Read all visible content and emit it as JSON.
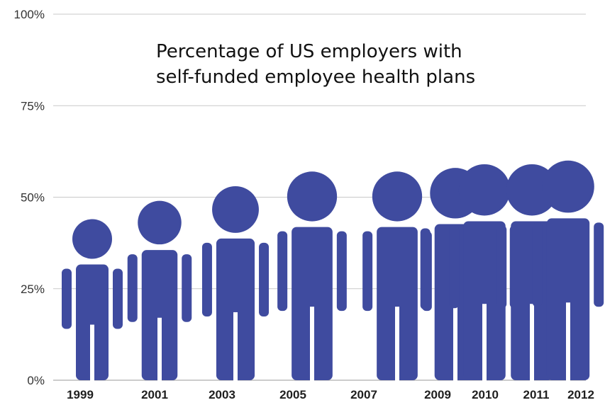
{
  "chart_data": {
    "type": "bar",
    "pictogram": "person-figures",
    "title_lines": [
      "Percentage of US employers with",
      "self-funded employee health plans"
    ],
    "xlabel": "",
    "ylabel": "",
    "ylim": [
      0,
      100
    ],
    "yticks": [
      "0%",
      "25%",
      "50%",
      "75%",
      "100%"
    ],
    "ytick_values": [
      0,
      25,
      50,
      75,
      100
    ],
    "grid": true,
    "categories": [
      "1999",
      "2001",
      "2003",
      "2005",
      "2007",
      "2009",
      "2010",
      "2011",
      "2012"
    ],
    "values": [
      44,
      49,
      53,
      57,
      57,
      58,
      59,
      59,
      60
    ],
    "colors": {
      "figure": "#3f4b9f",
      "gridline": "#c9c9c9",
      "text": "#222222"
    }
  }
}
